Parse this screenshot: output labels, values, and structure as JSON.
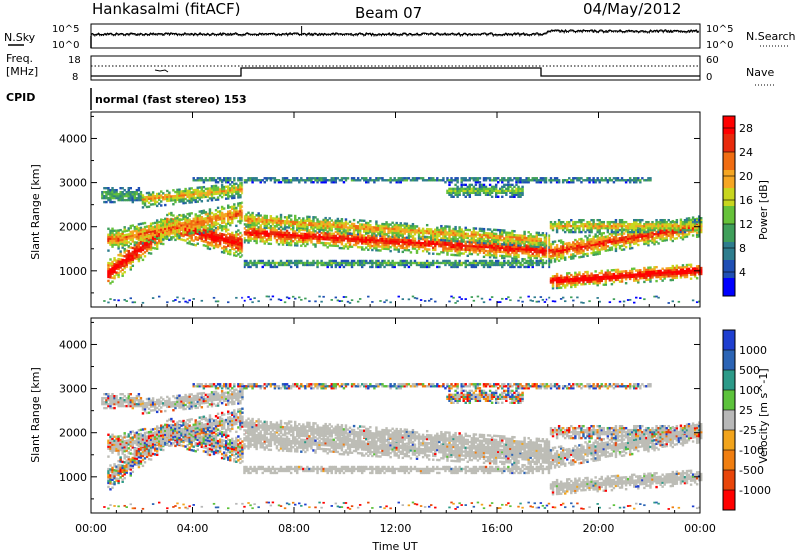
{
  "header": {
    "station": "Hankasalmi (fitACF)",
    "beam": "Beam 07",
    "date": "04/May/2012"
  },
  "noise_panel": {
    "left_label": "N.Sky",
    "right_label": "N.Search",
    "ticks_left": [
      "10^5",
      "10^0"
    ],
    "ticks_right": [
      "10^5",
      "10^0"
    ]
  },
  "freq_panel": {
    "left_label": "Freq.",
    "left_unit": "[MHz]",
    "right_label": "Nave",
    "ticks_left": [
      "18",
      "8"
    ],
    "ticks_right": [
      "60",
      "0"
    ]
  },
  "cpid": {
    "label": "CPID",
    "mode_text": "normal (fast stereo) 153"
  },
  "colors": {
    "power_scale": [
      "#0000ff",
      "#1f4fb4",
      "#2e7d8e",
      "#3f9f5a",
      "#66c23a",
      "#c8d61e",
      "#f5a623",
      "#f06d12",
      "#e82a0c",
      "#ff0000"
    ],
    "velocity_scale": [
      "#1f3fd0",
      "#2b64b5",
      "#2c9a88",
      "#5cc23b",
      "#b8b8b8",
      "#f2a41c",
      "#f07e10",
      "#e8450a",
      "#ff0000"
    ],
    "ground_scatter": "#bdbdb6"
  },
  "chart_data": [
    {
      "type": "heatmap",
      "name": "power-panel",
      "ylabel": "Slant Range [km]",
      "yticks": [
        1000,
        2000,
        3000,
        4000
      ],
      "ylim": [
        180,
        4600
      ],
      "xlim_hours": [
        0,
        24
      ],
      "colorbar": {
        "label": "Power [dB]",
        "ticks": [
          "4",
          "8",
          "12",
          "16",
          "20",
          "24",
          "28"
        ],
        "range": [
          0,
          30
        ]
      }
    },
    {
      "type": "heatmap",
      "name": "velocity-panel",
      "ylabel": "Slant Range [km]",
      "yticks": [
        1000,
        2000,
        3000,
        4000
      ],
      "ylim": [
        180,
        4600
      ],
      "xlim_hours": [
        0,
        24
      ],
      "colorbar": {
        "label": "Velocity [m s^-1]",
        "ticks": [
          "1000",
          "500",
          "100",
          "25",
          "-25",
          "-100",
          "-500",
          "-1000"
        ]
      }
    }
  ],
  "x_axis": {
    "label": "Time UT",
    "ticks": [
      "00:00",
      "04:00",
      "08:00",
      "12:00",
      "16:00",
      "20:00",
      "00:00"
    ]
  }
}
